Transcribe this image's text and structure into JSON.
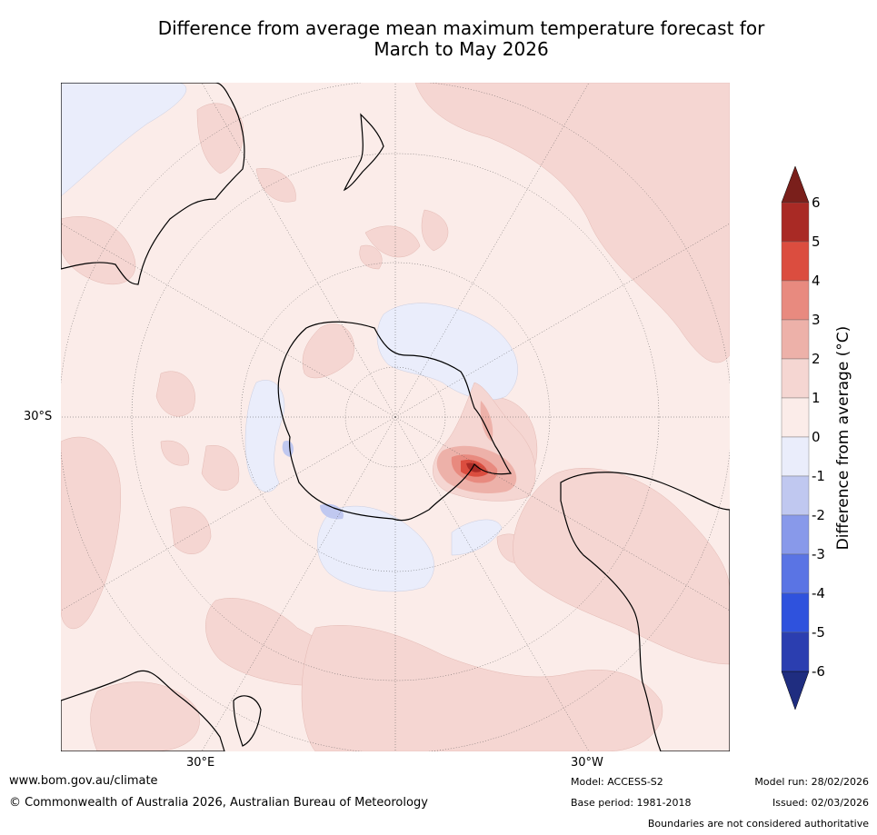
{
  "title": {
    "line1": "Difference from average mean maximum temperature forecast for",
    "line2": "March to May 2026"
  },
  "map": {
    "projection": "south-polar-stereographic",
    "lat_label": "30°S",
    "lon_labels": [
      "30°E",
      "30°W"
    ],
    "features": [
      "antarctica-coastline",
      "australia-coastline",
      "new-zealand-coastline",
      "south-america-coastline",
      "africa-coastline",
      "graticule"
    ],
    "anomaly_regions": [
      {
        "name": "antarctic-peninsula-warm-anomaly",
        "category": "3 to 4+"
      },
      {
        "name": "east-antarctica-cool-anomaly",
        "category": "0 to -1"
      },
      {
        "name": "ross-sea-cool-anomaly",
        "category": "0 to -1"
      }
    ]
  },
  "colorbar": {
    "title": "Difference from average (°C)",
    "ticks": [
      "6",
      "5",
      "4",
      "3",
      "2",
      "1",
      "0",
      "-1",
      "-2",
      "-3",
      "-4",
      "-5",
      "-6"
    ],
    "colors": [
      "#a92a25",
      "#db4d3f",
      "#e88a7f",
      "#edb1a9",
      "#f5d6d2",
      "#fbece9",
      "#eaedfb",
      "#c0c8f0",
      "#8899ea",
      "#5a74e4",
      "#2f52dd",
      "#2b3eb0"
    ],
    "over_color": "#7a1f1b",
    "under_color": "#1f2d80"
  },
  "footer": {
    "website": "www.bom.gov.au/climate",
    "copyright": "© Commonwealth of Australia 2026, Australian Bureau of Meteorology",
    "model": "Model: ACCESS-S2",
    "base_period": "Base period: 1981-2018",
    "model_run": "Model run: 28/02/2026",
    "issued": "Issued: 02/03/2026",
    "disclaimer": "Boundaries are not considered authoritative"
  }
}
